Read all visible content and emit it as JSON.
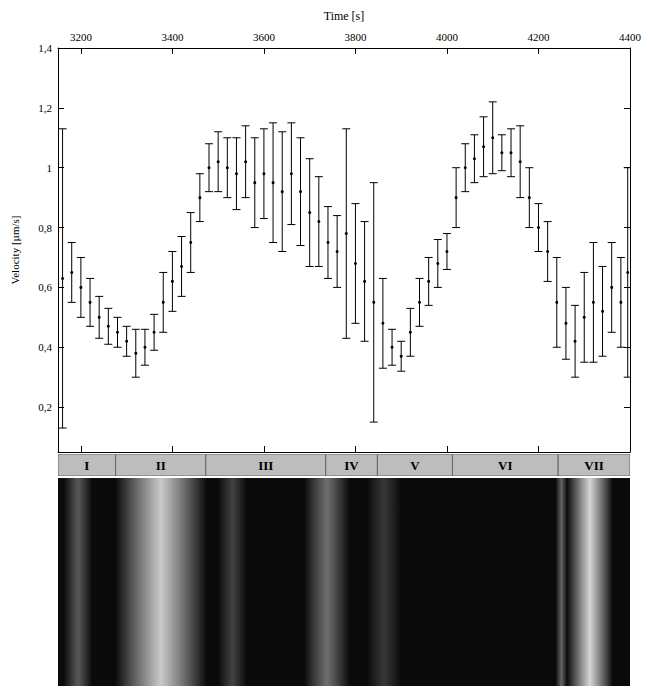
{
  "chart_data": {
    "type": "scatter",
    "x_label": "Time [s]",
    "y_label": "Velocity [µm/s]",
    "xlim": [
      3150,
      4400
    ],
    "xticks": [
      3200,
      3400,
      3600,
      3800,
      4000,
      4200,
      4400
    ],
    "ylim": [
      0.05,
      1.4
    ],
    "yticks": [
      {
        "value": 0.2,
        "label": "0,2"
      },
      {
        "value": 0.4,
        "label": "0,4"
      },
      {
        "value": 0.6,
        "label": "0,6"
      },
      {
        "value": 0.8,
        "label": "0,8"
      },
      1,
      {
        "value": 1.2,
        "label": "1,2"
      },
      {
        "value": 1.4,
        "label": "1,4"
      }
    ],
    "grid": false,
    "color": "#000000",
    "x": [
      3160,
      3180,
      3200,
      3220,
      3240,
      3260,
      3280,
      3300,
      3320,
      3340,
      3360,
      3380,
      3400,
      3420,
      3440,
      3460,
      3480,
      3500,
      3520,
      3540,
      3560,
      3580,
      3600,
      3620,
      3640,
      3660,
      3680,
      3700,
      3720,
      3740,
      3760,
      3780,
      3800,
      3820,
      3840,
      3860,
      3880,
      3900,
      3920,
      3940,
      3960,
      3980,
      4000,
      4020,
      4040,
      4060,
      4080,
      4100,
      4120,
      4140,
      4160,
      4180,
      4200,
      4220,
      4240,
      4260,
      4280,
      4300,
      4320,
      4340,
      4360,
      4380,
      4395
    ],
    "values": [
      0.63,
      0.65,
      0.6,
      0.55,
      0.5,
      0.47,
      0.45,
      0.42,
      0.38,
      0.4,
      0.45,
      0.55,
      0.62,
      0.67,
      0.75,
      0.9,
      1.0,
      1.02,
      1.0,
      0.98,
      1.02,
      0.95,
      0.98,
      0.95,
      0.92,
      0.98,
      0.92,
      0.85,
      0.82,
      0.75,
      0.72,
      0.78,
      0.68,
      0.62,
      0.55,
      0.48,
      0.4,
      0.37,
      0.45,
      0.55,
      0.62,
      0.68,
      0.72,
      0.9,
      1.0,
      1.03,
      1.07,
      1.1,
      1.05,
      1.05,
      1.02,
      0.9,
      0.8,
      0.72,
      0.55,
      0.48,
      0.42,
      0.5,
      0.55,
      0.52,
      0.6,
      0.55,
      0.65
    ],
    "errors": [
      0.5,
      0.1,
      0.1,
      0.08,
      0.07,
      0.06,
      0.05,
      0.05,
      0.08,
      0.06,
      0.06,
      0.1,
      0.1,
      0.1,
      0.1,
      0.08,
      0.08,
      0.1,
      0.1,
      0.12,
      0.12,
      0.15,
      0.15,
      0.2,
      0.2,
      0.17,
      0.18,
      0.18,
      0.15,
      0.12,
      0.12,
      0.35,
      0.2,
      0.2,
      0.4,
      0.15,
      0.06,
      0.05,
      0.08,
      0.08,
      0.08,
      0.08,
      0.06,
      0.1,
      0.08,
      0.08,
      0.1,
      0.12,
      0.06,
      0.08,
      0.12,
      0.1,
      0.08,
      0.1,
      0.15,
      0.12,
      0.12,
      0.15,
      0.2,
      0.15,
      0.15,
      0.15,
      0.35
    ],
    "phases": [
      {
        "label": "I",
        "start": 3150,
        "end": 3276
      },
      {
        "label": "II",
        "start": 3276,
        "end": 3473
      },
      {
        "label": "III",
        "start": 3473,
        "end": 3735
      },
      {
        "label": "IV",
        "start": 3735,
        "end": 3848
      },
      {
        "label": "V",
        "start": 3848,
        "end": 4012
      },
      {
        "label": "VI",
        "start": 4012,
        "end": 4243
      },
      {
        "label": "VII",
        "start": 4243,
        "end": 4400
      }
    ]
  }
}
